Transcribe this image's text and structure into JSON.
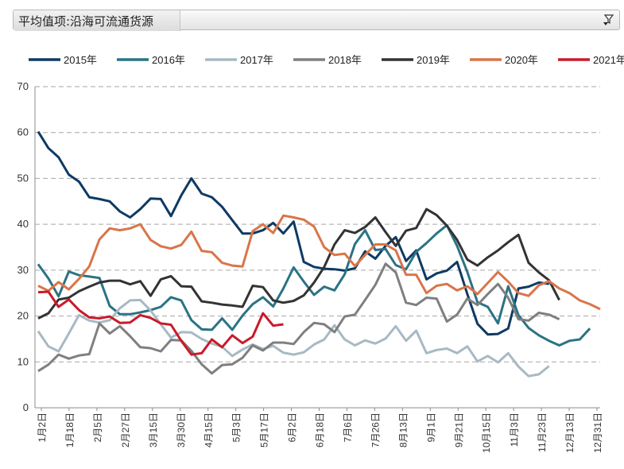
{
  "filter": {
    "label": "平均值项:沿海可流通货源",
    "icon": "filter-dropdown-icon"
  },
  "chart_data": {
    "type": "line",
    "title": "",
    "xlabel": "",
    "ylabel": "",
    "ylim": [
      0,
      70
    ],
    "yticks": [
      0,
      10,
      20,
      30,
      40,
      50,
      60,
      70
    ],
    "grid": true,
    "legend_position": "top",
    "x_tick_labels": [
      "1月2日",
      "1月18日",
      "2月5日",
      "2月27日",
      "3月15日",
      "3月30日",
      "4月15日",
      "5月3日",
      "5月17日",
      "6月2日",
      "6月18日",
      "7月6日",
      "7月26日",
      "8月13日",
      "9月1日",
      "9月21日",
      "10月15日",
      "11月3日",
      "11月23日",
      "12月13日",
      "12月31日"
    ],
    "series": [
      {
        "name": "2015年",
        "color": "#0e3a63",
        "values": [
          60.2,
          56.6,
          54.6,
          50.8,
          49.3,
          45.9,
          45.5,
          45.0,
          42.8,
          41.5,
          43.3,
          45.6,
          45.5,
          41.8,
          46.3,
          50.0,
          46.7,
          45.9,
          43.8,
          40.9,
          38.0,
          38.0,
          38.7,
          40.3,
          38.0,
          40.6,
          31.8,
          30.7,
          30.3,
          30.2,
          29.9,
          30.4,
          34.1,
          32.5,
          35.3,
          37.2,
          32.0,
          34.3,
          28.0,
          29.3,
          29.9,
          31.8,
          24.8,
          18.3,
          16.0,
          16.1,
          17.3,
          26.0,
          26.4,
          27.3,
          27.0
        ]
      },
      {
        "name": "2016年",
        "color": "#2b7384",
        "values": [
          31.3,
          28.2,
          24.3,
          29.7,
          28.9,
          28.6,
          28.3,
          22.2,
          20.4,
          20.4,
          20.8,
          21.3,
          22.0,
          24.1,
          23.4,
          19.1,
          17.1,
          17.0,
          19.5,
          17.0,
          20.1,
          22.6,
          24.1,
          22.1,
          26.0,
          30.6,
          27.5,
          24.6,
          26.4,
          25.6,
          29.1,
          35.7,
          38.7,
          34.4,
          34.6,
          31.1,
          30.2,
          34.0,
          35.9,
          38.0,
          39.8,
          35.3,
          29.6,
          23.0,
          22.0,
          18.4,
          26.5,
          20.2,
          17.4,
          15.8,
          14.6,
          13.6,
          14.6,
          14.9,
          17.3
        ]
      },
      {
        "name": "2017年",
        "color": "#a8b9c3",
        "values": [
          16.7,
          13.4,
          12.3,
          16.2,
          20.2,
          19.0,
          18.6,
          19.1,
          21.7,
          23.4,
          23.5,
          21.2,
          18.2,
          15.3,
          16.5,
          16.4,
          15.0,
          14.0,
          13.3,
          11.3,
          12.7,
          13.8,
          12.8,
          13.5,
          12.0,
          11.6,
          12.1,
          13.8,
          14.9,
          18.0,
          14.9,
          13.6,
          14.7,
          14.0,
          15.1,
          17.8,
          14.6,
          16.8,
          11.9,
          12.6,
          12.9,
          11.9,
          13.4,
          10.1,
          11.3,
          9.9,
          11.9,
          9.0,
          6.9,
          7.3,
          9.1
        ]
      },
      {
        "name": "2018年",
        "color": "#7f7f7f",
        "values": [
          8.0,
          9.4,
          11.6,
          10.7,
          11.4,
          11.7,
          18.4,
          16.2,
          17.8,
          15.6,
          13.2,
          13.0,
          12.3,
          14.8,
          14.7,
          12.4,
          9.5,
          7.5,
          9.3,
          9.5,
          10.9,
          13.6,
          12.5,
          14.2,
          14.2,
          13.9,
          16.5,
          18.5,
          18.2,
          16.5,
          19.9,
          20.3,
          23.5,
          26.8,
          31.4,
          29.5,
          22.9,
          22.4,
          24.0,
          23.8,
          18.8,
          20.3,
          23.8,
          22.4,
          24.8,
          27.0,
          24.0,
          19.3,
          19.0,
          20.7,
          20.3,
          19.3
        ]
      },
      {
        "name": "2019年",
        "color": "#333333",
        "values": [
          19.5,
          20.6,
          23.6,
          24.0,
          25.4,
          26.4,
          27.3,
          27.7,
          27.7,
          26.9,
          27.6,
          24.4,
          28.0,
          28.7,
          26.5,
          26.4,
          23.2,
          22.9,
          22.5,
          22.3,
          22.0,
          26.6,
          26.3,
          23.4,
          22.9,
          23.3,
          24.5,
          27.3,
          30.7,
          35.6,
          38.7,
          38.1,
          39.4,
          41.5,
          38.3,
          35.3,
          38.6,
          39.2,
          43.3,
          42.0,
          39.7,
          36.6,
          32.3,
          31.0,
          32.8,
          34.3,
          36.1,
          37.7,
          31.6,
          29.5,
          27.8,
          23.5
        ]
      },
      {
        "name": "2020年",
        "color": "#d97549",
        "values": [
          26.6,
          25.5,
          27.4,
          25.8,
          28.1,
          30.8,
          36.7,
          39.1,
          38.7,
          39.1,
          40.0,
          36.6,
          35.2,
          34.7,
          35.5,
          38.4,
          34.2,
          33.9,
          31.6,
          31.0,
          30.8,
          38.5,
          40.0,
          38.1,
          41.9,
          41.5,
          41.0,
          39.5,
          35.0,
          33.3,
          33.6,
          30.9,
          33.3,
          35.6,
          35.6,
          34.3,
          29.0,
          29.0,
          25.0,
          26.6,
          27.0,
          25.6,
          26.5,
          24.8,
          27.2,
          29.6,
          27.5,
          25.0,
          24.4,
          26.7,
          27.6,
          26.0,
          25.0,
          23.4,
          22.6,
          21.5
        ]
      },
      {
        "name": "2021年",
        "color": "#c91a2a",
        "values": [
          25.2,
          25.3,
          22.0,
          23.6,
          21.3,
          19.7,
          19.5,
          19.9,
          18.5,
          18.6,
          20.2,
          19.6,
          18.4,
          18.1,
          14.6,
          11.6,
          11.9,
          14.9,
          13.2,
          15.8,
          14.1,
          15.5,
          20.6,
          17.9,
          18.2
        ]
      }
    ]
  }
}
